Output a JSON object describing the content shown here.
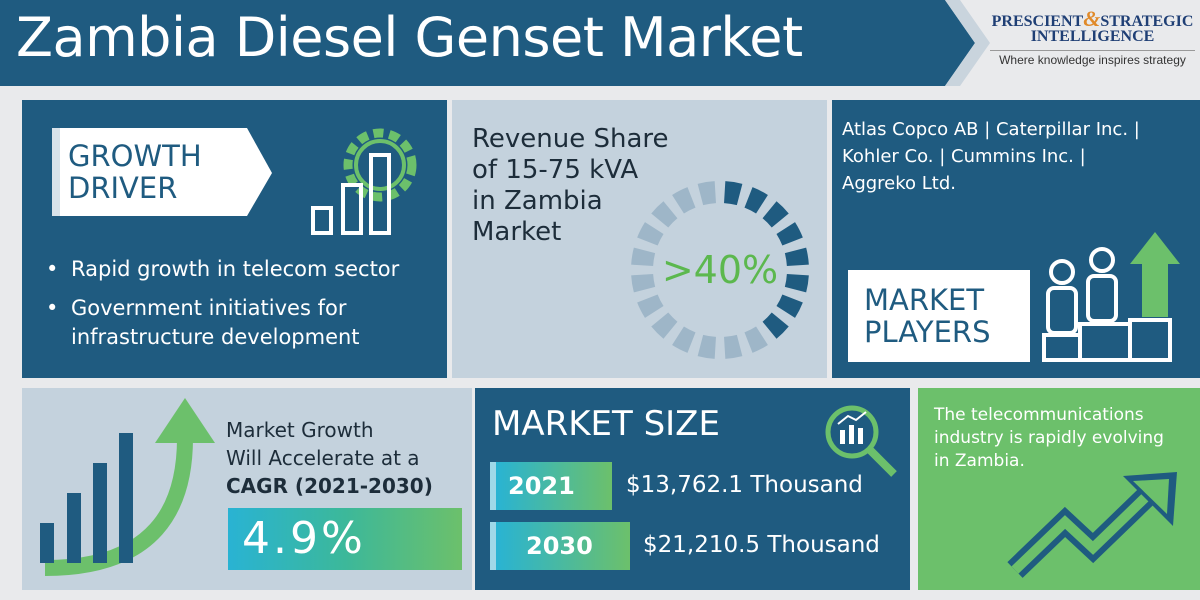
{
  "header": {
    "title": "Zambia Diesel Genset Market"
  },
  "logo": {
    "word1": "PRESCIENT",
    "amp": "&",
    "word2": "STRATEGIC",
    "word3": "INTELLIGENCE",
    "tagline": "Where knowledge inspires strategy"
  },
  "growth_driver": {
    "label_lines": [
      "GROWTH",
      "DRIVER"
    ],
    "bullets": [
      "Rapid growth in telecom sector",
      "Government initiatives for infrastructure development"
    ]
  },
  "revenue_share": {
    "lines": [
      "Revenue Share",
      "of 15-75 kVA",
      "in Zambia",
      "Market"
    ],
    "value": ">40%"
  },
  "market_players": {
    "lines": [
      "Atlas Copco AB | Caterpillar Inc. |",
      "Kohler Co. | Cummins Inc. |",
      "Aggreko Ltd."
    ],
    "label_lines": [
      "MARKET",
      "PLAYERS"
    ]
  },
  "growth": {
    "lines": [
      "Market Growth",
      "Will Accelerate at a",
      "CAGR (2021-2030)"
    ],
    "cagr": "4.9%"
  },
  "market_size": {
    "title": "MARKET SIZE",
    "rows": [
      {
        "year": "2021",
        "value": "$13,762.1 Thousand"
      },
      {
        "year": "2030",
        "value": "$21,210.5 Thousand"
      }
    ]
  },
  "note": {
    "lines": [
      "The telecommunications",
      "industry is rapidly evolving",
      "in Zambia."
    ]
  }
}
